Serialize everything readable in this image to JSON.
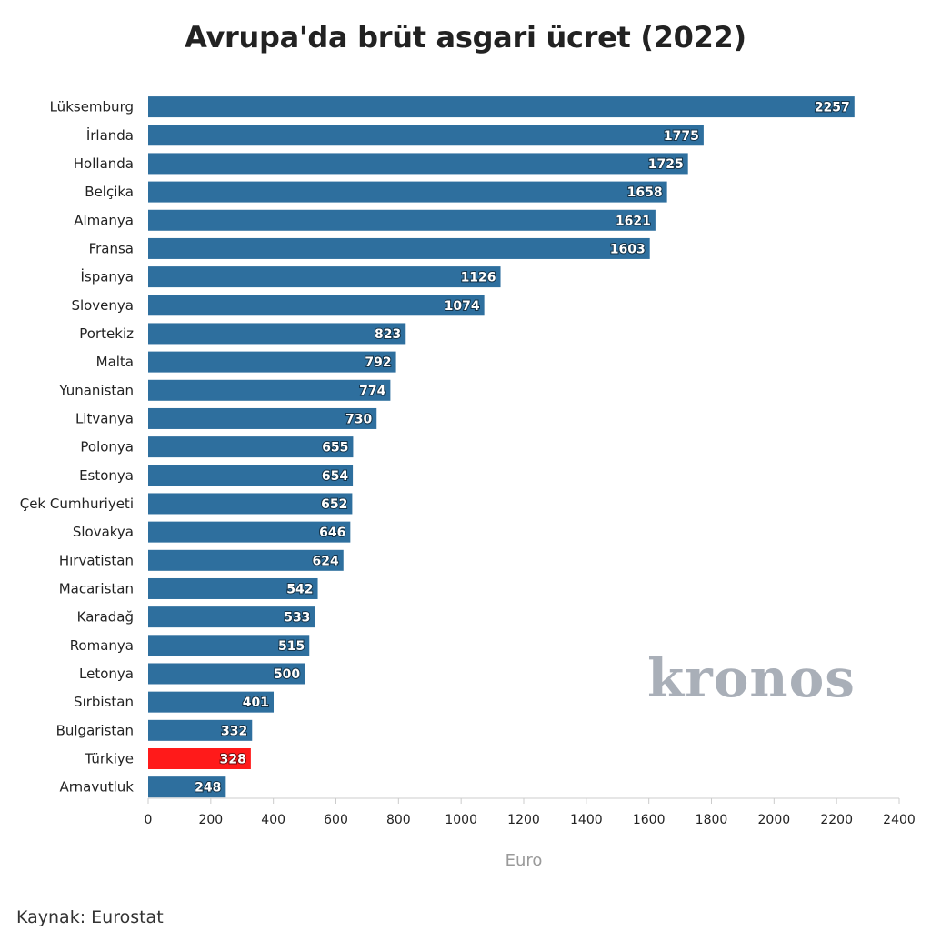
{
  "chart_data": {
    "type": "bar",
    "orientation": "horizontal",
    "title": "Avrupa'da brüt asgari ücret (2022)",
    "xlabel": "Euro",
    "ylabel": "",
    "xlim": [
      0,
      2400
    ],
    "ticks": [
      0,
      200,
      400,
      600,
      800,
      1000,
      1200,
      1400,
      1600,
      1800,
      2000,
      2200,
      2400
    ],
    "tick_labels": [
      "0",
      "200",
      "400",
      "600",
      "800",
      "1000",
      "1200",
      "1400",
      "1600",
      "1800",
      "2000",
      "2200",
      "2400"
    ],
    "categories": [
      "Lüksemburg",
      "İrlanda",
      "Hollanda",
      "Belçika",
      "Almanya",
      "Fransa",
      "İspanya",
      "Slovenya",
      "Portekiz",
      "Malta",
      "Yunanistan",
      "Litvanya",
      "Polonya",
      "Estonya",
      "Çek Cumhuriyeti",
      "Slovakya",
      "Hırvatistan",
      "Macaristan",
      "Karadağ",
      "Romanya",
      "Letonya",
      "Sırbistan",
      "Bulgaristan",
      "Türkiye",
      "Arnavutluk"
    ],
    "values": [
      2257,
      1775,
      1725,
      1658,
      1621,
      1603,
      1126,
      1074,
      823,
      792,
      774,
      730,
      655,
      654,
      652,
      646,
      624,
      542,
      533,
      515,
      500,
      401,
      332,
      328,
      248
    ],
    "value_labels": [
      "2257",
      "1775",
      "1725",
      "1658",
      "1621",
      "1603",
      "1126",
      "1074",
      "823",
      "792",
      "774",
      "730",
      "655",
      "654",
      "652",
      "646",
      "624",
      "542",
      "533",
      "515",
      "500",
      "401",
      "332",
      "328",
      "248"
    ],
    "highlight": "Türkiye",
    "colors": {
      "bar": "#2e6f9e",
      "highlight": "#ff1a1a",
      "axis": "#cccccc"
    }
  },
  "watermark": "kronos",
  "source": "Kaynak: Eurostat"
}
